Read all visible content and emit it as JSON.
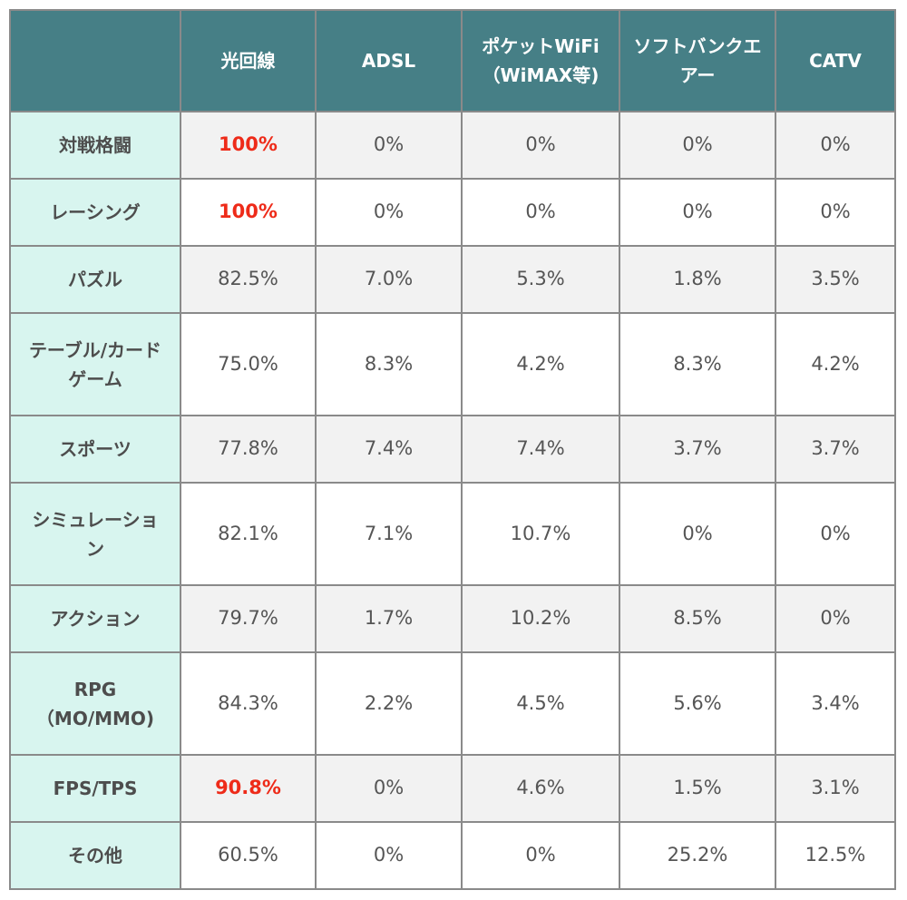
{
  "table": {
    "headers": [
      "",
      "光回線",
      "ADSL",
      "ポケットWiFi\n（WiMAX等)",
      "ソフトバンクエ\nアー",
      "CATV"
    ],
    "rows": [
      {
        "label": "対戦格闘",
        "values": [
          "100%",
          "0%",
          "0%",
          "0%",
          "0%"
        ]
      },
      {
        "label": "レーシング",
        "values": [
          "100%",
          "0%",
          "0%",
          "0%",
          "0%"
        ]
      },
      {
        "label": "パズル",
        "values": [
          "82.5%",
          "7.0%",
          "5.3%",
          "1.8%",
          "3.5%"
        ]
      },
      {
        "label": "テーブル/カード\nゲーム",
        "values": [
          "75.0%",
          "8.3%",
          "4.2%",
          "8.3%",
          "4.2%"
        ]
      },
      {
        "label": "スポーツ",
        "values": [
          "77.8%",
          "7.4%",
          "7.4%",
          "3.7%",
          "3.7%"
        ]
      },
      {
        "label": "シミュレーショ\nン",
        "values": [
          "82.1%",
          "7.1%",
          "10.7%",
          "0%",
          "0%"
        ]
      },
      {
        "label": "アクション",
        "values": [
          "79.7%",
          "1.7%",
          "10.2%",
          "8.5%",
          "0%"
        ]
      },
      {
        "label": "RPG\n（MO/MMO)",
        "values": [
          "84.3%",
          "2.2%",
          "4.5%",
          "5.6%",
          "3.4%"
        ]
      },
      {
        "label": "FPS/TPS",
        "values": [
          "90.8%",
          "0%",
          "4.6%",
          "1.5%",
          "3.1%"
        ]
      },
      {
        "label": "その他",
        "values": [
          "60.5%",
          "0%",
          "0%",
          "25.2%",
          "12.5%"
        ]
      }
    ]
  },
  "colors": {
    "header_bg": "#467f86",
    "label_bg": "#d8f5ef",
    "highlight_text": "#ee2b19",
    "shaded_row_bg": "#f2f2f2"
  }
}
